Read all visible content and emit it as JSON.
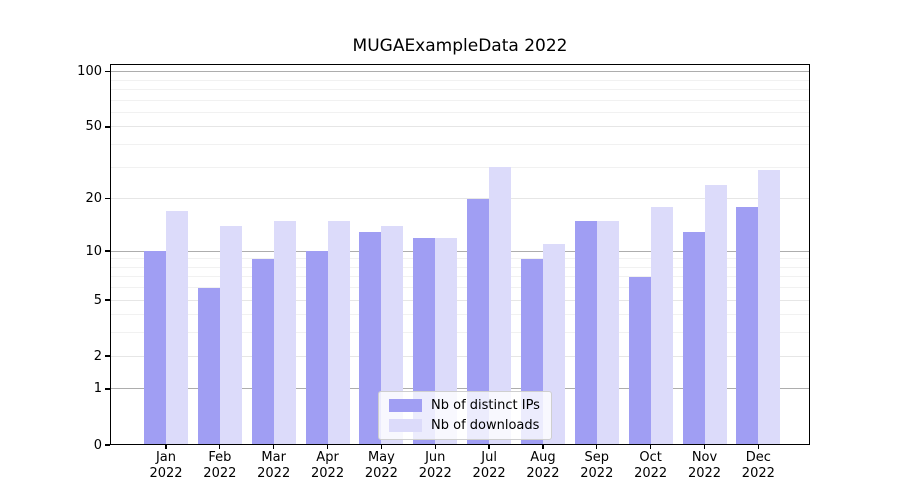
{
  "figure": {
    "title": "MUGAExampleData 2022"
  },
  "chart_data": {
    "type": "bar",
    "title": "MUGAExampleData 2022",
    "categories": [
      "Jan",
      "Feb",
      "Mar",
      "Apr",
      "May",
      "Jun",
      "Jul",
      "Aug",
      "Sep",
      "Oct",
      "Nov",
      "Dec"
    ],
    "category_year": "2022",
    "series": [
      {
        "name": "Nb of distinct IPs",
        "color": "#a09ef3",
        "values": [
          10,
          6,
          9,
          10,
          13,
          12,
          20,
          9,
          15,
          7,
          13,
          18
        ]
      },
      {
        "name": "Nb of downloads",
        "color": "#dcdbfa",
        "values": [
          17,
          14,
          15,
          15,
          14,
          12,
          30,
          11,
          15,
          18,
          24,
          29
        ]
      }
    ],
    "xlabel": "",
    "ylabel": "",
    "yscale": "log1p",
    "ylim": [
      0,
      110
    ],
    "yticks": [
      0,
      1,
      2,
      5,
      10,
      20,
      50,
      100
    ],
    "minor_gridlines": [
      3,
      4,
      6,
      7,
      8,
      9,
      30,
      40,
      60,
      70,
      80,
      90
    ],
    "emphasized_gridlines": [
      1,
      10,
      100
    ],
    "grid": true,
    "legend_position": "lower center",
    "grid_color": "#e6e6e6",
    "grid_minor_color": "#f1f1f1",
    "grid_emphasis_color": "#adadad"
  }
}
